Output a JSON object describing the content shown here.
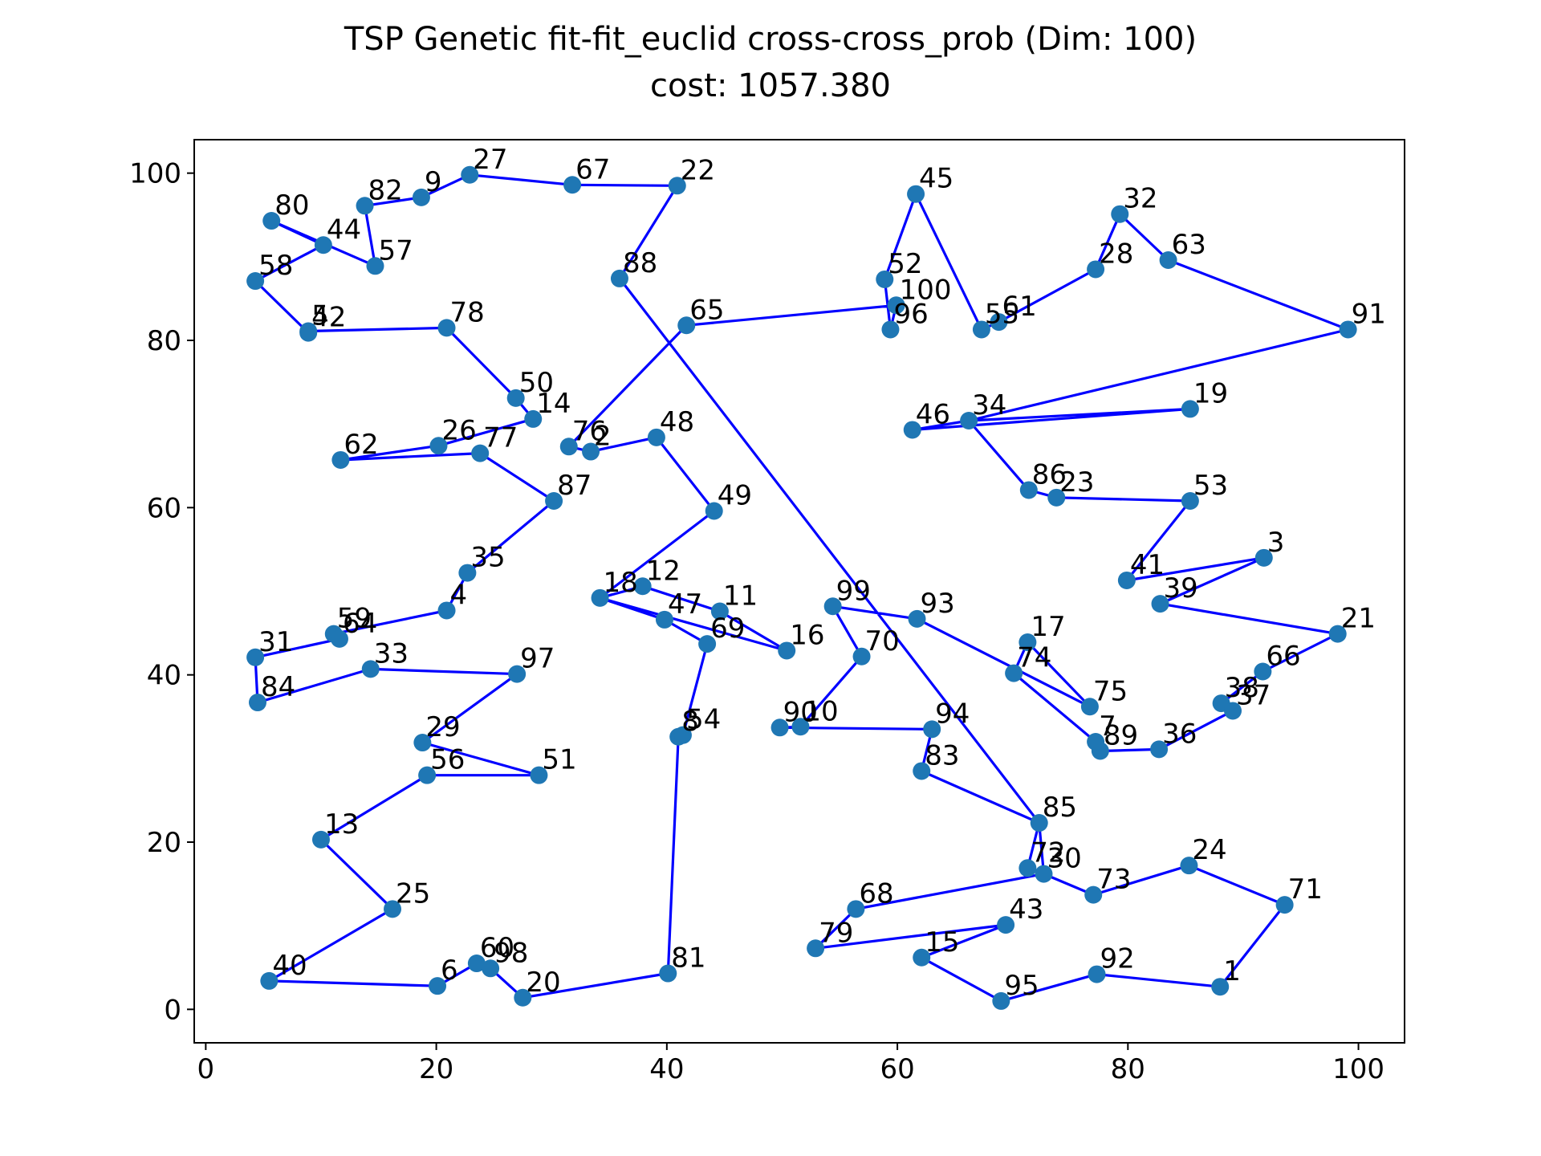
{
  "chart_data": {
    "type": "scatter",
    "title": "TSP Genetic fit-fit_euclid cross-cross_prob (Dim: 100)",
    "subtitle": "cost: 1057.380",
    "xlim": [
      -1,
      104
    ],
    "ylim": [
      -4,
      104
    ],
    "xticks": [
      0,
      20,
      40,
      60,
      80,
      100
    ],
    "yticks": [
      0,
      20,
      40,
      60,
      80,
      100
    ],
    "grid": false,
    "colors": {
      "points": "#1f77b4",
      "route": "#0000ff"
    },
    "points": [
      {
        "id": "80",
        "x": 5.7,
        "y": 94.3
      },
      {
        "id": "44",
        "x": 10.2,
        "y": 91.4
      },
      {
        "id": "58",
        "x": 4.3,
        "y": 87.1
      },
      {
        "id": "5",
        "x": 8.9,
        "y": 81.1
      },
      {
        "id": "42",
        "x": 8.9,
        "y": 80.9
      },
      {
        "id": "78",
        "x": 20.9,
        "y": 81.5
      },
      {
        "id": "50",
        "x": 26.9,
        "y": 73.1
      },
      {
        "id": "14",
        "x": 28.4,
        "y": 70.6
      },
      {
        "id": "26",
        "x": 20.2,
        "y": 67.4
      },
      {
        "id": "62",
        "x": 11.7,
        "y": 65.7
      },
      {
        "id": "77",
        "x": 23.8,
        "y": 66.5
      },
      {
        "id": "87",
        "x": 30.2,
        "y": 60.8
      },
      {
        "id": "35",
        "x": 22.7,
        "y": 52.2
      },
      {
        "id": "4",
        "x": 20.9,
        "y": 47.7
      },
      {
        "id": "59",
        "x": 11.1,
        "y": 44.9
      },
      {
        "id": "64",
        "x": 11.6,
        "y": 44.3
      },
      {
        "id": "31",
        "x": 4.3,
        "y": 42.1
      },
      {
        "id": "84",
        "x": 4.5,
        "y": 36.7
      },
      {
        "id": "33",
        "x": 14.3,
        "y": 40.7
      },
      {
        "id": "97",
        "x": 27.0,
        "y": 40.1
      },
      {
        "id": "29",
        "x": 18.8,
        "y": 31.9
      },
      {
        "id": "51",
        "x": 28.9,
        "y": 28.0
      },
      {
        "id": "56",
        "x": 19.2,
        "y": 28.0
      },
      {
        "id": "13",
        "x": 10.0,
        "y": 20.3
      },
      {
        "id": "25",
        "x": 16.2,
        "y": 12.0
      },
      {
        "id": "40",
        "x": 5.5,
        "y": 3.4
      },
      {
        "id": "6",
        "x": 20.1,
        "y": 2.8
      },
      {
        "id": "60",
        "x": 23.5,
        "y": 5.5
      },
      {
        "id": "98",
        "x": 24.7,
        "y": 4.9
      },
      {
        "id": "20",
        "x": 27.5,
        "y": 1.4
      },
      {
        "id": "81",
        "x": 40.1,
        "y": 4.3
      },
      {
        "id": "8",
        "x": 41.0,
        "y": 32.6
      },
      {
        "id": "54",
        "x": 41.4,
        "y": 32.8
      },
      {
        "id": "69",
        "x": 43.5,
        "y": 43.7
      },
      {
        "id": "47",
        "x": 39.8,
        "y": 46.6
      },
      {
        "id": "18",
        "x": 34.2,
        "y": 49.2
      },
      {
        "id": "12",
        "x": 37.9,
        "y": 50.6
      },
      {
        "id": "11",
        "x": 44.6,
        "y": 47.6
      },
      {
        "id": "16",
        "x": 50.4,
        "y": 42.9
      },
      {
        "id": "49",
        "x": 44.1,
        "y": 59.6
      },
      {
        "id": "48",
        "x": 39.1,
        "y": 68.4
      },
      {
        "id": "2",
        "x": 33.4,
        "y": 66.7
      },
      {
        "id": "76",
        "x": 31.5,
        "y": 67.3
      },
      {
        "id": "65",
        "x": 41.7,
        "y": 81.8
      },
      {
        "id": "100",
        "x": 59.9,
        "y": 84.2
      },
      {
        "id": "96",
        "x": 59.4,
        "y": 81.3
      },
      {
        "id": "52",
        "x": 58.9,
        "y": 87.3
      },
      {
        "id": "45",
        "x": 61.6,
        "y": 97.5
      },
      {
        "id": "55",
        "x": 67.3,
        "y": 81.3
      },
      {
        "id": "61",
        "x": 68.8,
        "y": 82.2
      },
      {
        "id": "28",
        "x": 77.2,
        "y": 88.5
      },
      {
        "id": "32",
        "x": 79.3,
        "y": 95.1
      },
      {
        "id": "63",
        "x": 83.5,
        "y": 89.6
      },
      {
        "id": "91",
        "x": 99.1,
        "y": 81.3
      },
      {
        "id": "34",
        "x": 66.2,
        "y": 70.4
      },
      {
        "id": "19",
        "x": 85.4,
        "y": 71.8
      },
      {
        "id": "46",
        "x": 61.3,
        "y": 69.3
      },
      {
        "id": "86",
        "x": 71.4,
        "y": 62.1
      },
      {
        "id": "23",
        "x": 73.8,
        "y": 61.2
      },
      {
        "id": "53",
        "x": 85.4,
        "y": 60.8
      },
      {
        "id": "41",
        "x": 79.9,
        "y": 51.3
      },
      {
        "id": "3",
        "x": 91.8,
        "y": 54.0
      },
      {
        "id": "39",
        "x": 82.8,
        "y": 48.5
      },
      {
        "id": "21",
        "x": 98.2,
        "y": 44.9
      },
      {
        "id": "66",
        "x": 91.7,
        "y": 40.4
      },
      {
        "id": "38",
        "x": 88.1,
        "y": 36.6
      },
      {
        "id": "37",
        "x": 89.1,
        "y": 35.7
      },
      {
        "id": "36",
        "x": 82.7,
        "y": 31.1
      },
      {
        "id": "89",
        "x": 77.6,
        "y": 30.9
      },
      {
        "id": "7",
        "x": 77.2,
        "y": 32.0
      },
      {
        "id": "74",
        "x": 70.1,
        "y": 40.2
      },
      {
        "id": "17",
        "x": 71.3,
        "y": 43.9
      },
      {
        "id": "75",
        "x": 76.7,
        "y": 36.2
      },
      {
        "id": "93",
        "x": 61.7,
        "y": 46.7
      },
      {
        "id": "99",
        "x": 54.4,
        "y": 48.2
      },
      {
        "id": "70",
        "x": 56.9,
        "y": 42.2
      },
      {
        "id": "10",
        "x": 51.6,
        "y": 33.8
      },
      {
        "id": "90",
        "x": 49.8,
        "y": 33.7
      },
      {
        "id": "94",
        "x": 63.0,
        "y": 33.5
      },
      {
        "id": "83",
        "x": 62.1,
        "y": 28.5
      },
      {
        "id": "85",
        "x": 72.3,
        "y": 22.3
      },
      {
        "id": "72",
        "x": 71.3,
        "y": 16.9
      },
      {
        "id": "30",
        "x": 72.7,
        "y": 16.2
      },
      {
        "id": "73",
        "x": 77.0,
        "y": 13.7
      },
      {
        "id": "24",
        "x": 85.3,
        "y": 17.2
      },
      {
        "id": "71",
        "x": 93.6,
        "y": 12.5
      },
      {
        "id": "1",
        "x": 88.0,
        "y": 2.7
      },
      {
        "id": "92",
        "x": 77.3,
        "y": 4.2
      },
      {
        "id": "95",
        "x": 69.0,
        "y": 1.0
      },
      {
        "id": "15",
        "x": 62.1,
        "y": 6.2
      },
      {
        "id": "43",
        "x": 69.4,
        "y": 10.1
      },
      {
        "id": "79",
        "x": 52.9,
        "y": 7.3
      },
      {
        "id": "68",
        "x": 56.4,
        "y": 12.0
      },
      {
        "id": "88",
        "x": 35.9,
        "y": 87.4
      },
      {
        "id": "22",
        "x": 40.9,
        "y": 98.5
      },
      {
        "id": "67",
        "x": 31.8,
        "y": 98.6
      },
      {
        "id": "27",
        "x": 22.9,
        "y": 99.8
      },
      {
        "id": "9",
        "x": 18.7,
        "y": 97.1
      },
      {
        "id": "82",
        "x": 13.8,
        "y": 96.1
      },
      {
        "id": "57",
        "x": 14.7,
        "y": 88.9
      }
    ],
    "route": [
      "80",
      "44",
      "58",
      "42",
      "5",
      "78",
      "50",
      "14",
      "26",
      "62",
      "77",
      "87",
      "35",
      "4",
      "59",
      "64",
      "31",
      "84",
      "33",
      "97",
      "29",
      "51",
      "56",
      "13",
      "25",
      "40",
      "6",
      "60",
      "98",
      "20",
      "81",
      "8",
      "54",
      "69",
      "47",
      "18",
      "12",
      "11",
      "16",
      "18",
      "49",
      "48",
      "2",
      "76",
      "65",
      "100",
      "96",
      "52",
      "45",
      "55",
      "61",
      "28",
      "32",
      "63",
      "91",
      "34",
      "19",
      "46",
      "34",
      "86",
      "23",
      "53",
      "41",
      "3",
      "39",
      "21",
      "66",
      "38",
      "37",
      "36",
      "89",
      "7",
      "74",
      "17",
      "75",
      "93",
      "99",
      "70",
      "10",
      "90",
      "94",
      "83",
      "85",
      "72",
      "30",
      "73",
      "24",
      "71",
      "1",
      "92",
      "95",
      "15",
      "43",
      "79",
      "68",
      "30",
      "85",
      "88",
      "22",
      "67",
      "27",
      "9",
      "82",
      "57",
      "80"
    ]
  }
}
